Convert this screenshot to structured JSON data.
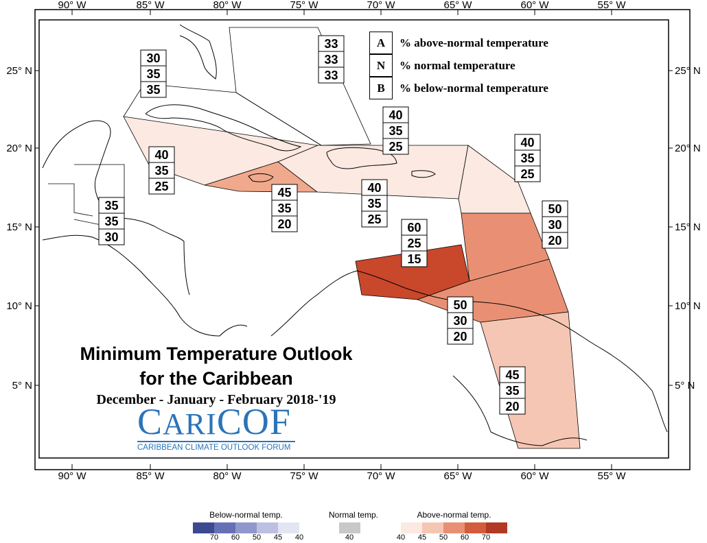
{
  "map": {
    "title_line1": "Minimum Temperature Outlook",
    "title_line2": "for the Caribbean",
    "period": "December - January - February 2018-'19",
    "longitude_labels": [
      "90° W",
      "85° W",
      "80° W",
      "75° W",
      "70° W",
      "65° W",
      "60° W",
      "55° W"
    ],
    "latitude_labels": [
      "25° N",
      "20° N",
      "15° N",
      "10° N",
      "5° N"
    ],
    "colors": {
      "above_40": "#fbe9e2",
      "above_45": "#f6c6b4",
      "above_50": "#e99074",
      "above_60": "#d35c3d",
      "above_70": "#b23a24",
      "frame": "#000000"
    }
  },
  "legend": {
    "rows": [
      {
        "key": "A",
        "text": "% above-normal temperature"
      },
      {
        "key": "N",
        "text": "% normal temperature"
      },
      {
        "key": "B",
        "text": "% below-normal temperature"
      }
    ]
  },
  "logo": {
    "word_big_c": "C",
    "word_ari": "ARI",
    "word_cof": "COF",
    "tagline": "CARIBBEAN CLIMATE OUTLOOK FORUM"
  },
  "zones": [
    {
      "name": "zone-bahamas",
      "A": "33",
      "N": "33",
      "B": "33"
    },
    {
      "name": "zone-cuba-north",
      "A": "30",
      "N": "35",
      "B": "35"
    },
    {
      "name": "zone-cuba-south",
      "A": "40",
      "N": "35",
      "B": "25"
    },
    {
      "name": "zone-jamaica",
      "A": "45",
      "N": "35",
      "B": "20"
    },
    {
      "name": "zone-hispaniola-north",
      "A": "40",
      "N": "35",
      "B": "25"
    },
    {
      "name": "zone-hispaniola-south",
      "A": "40",
      "N": "35",
      "B": "25"
    },
    {
      "name": "zone-belize",
      "A": "35",
      "N": "35",
      "B": "30"
    },
    {
      "name": "zone-leeward-islands",
      "A": "40",
      "N": "35",
      "B": "25"
    },
    {
      "name": "zone-windward-islands",
      "A": "50",
      "N": "30",
      "B": "20"
    },
    {
      "name": "zone-abc-islands",
      "A": "60",
      "N": "25",
      "B": "15"
    },
    {
      "name": "zone-trinidad",
      "A": "50",
      "N": "30",
      "B": "20"
    },
    {
      "name": "zone-guianas",
      "A": "45",
      "N": "35",
      "B": "20"
    }
  ],
  "color_scale": {
    "below": {
      "title": "Below-normal temp.",
      "ticks": [
        "70",
        "60",
        "50",
        "45",
        "40"
      ],
      "colors": [
        "#3d4a91",
        "#6671b5",
        "#8f97cc",
        "#bcc1e2",
        "#e3e5f3"
      ]
    },
    "normal": {
      "title": "Normal temp.",
      "ticks": [
        "40"
      ],
      "colors": [
        "#c8c8c8"
      ]
    },
    "above": {
      "title": "Above-normal temp.",
      "ticks": [
        "40",
        "45",
        "50",
        "60",
        "70"
      ],
      "colors": [
        "#fbe9e2",
        "#f6c6b4",
        "#e99074",
        "#d35c3d",
        "#b23a24"
      ]
    }
  }
}
